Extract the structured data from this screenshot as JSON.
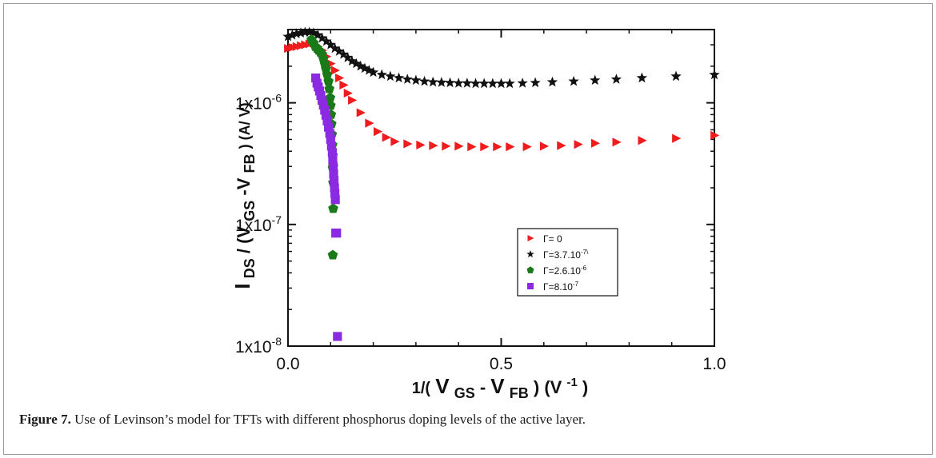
{
  "caption": {
    "label": "Figure 7.",
    "text": "Use of Levinson’s model for TFTs with different phosphorus doping levels of the active layer."
  },
  "chart_data": {
    "type": "scatter",
    "title": "",
    "xlabel": {
      "prefix": "1/(",
      "v1": "V",
      "sub1": "GS",
      "sep": "- ",
      "v2": "V",
      "sub2": "FB",
      "suffix": " ) (V",
      "unit_sup": "-1",
      "close": " )"
    },
    "ylabel": {
      "i": "I",
      "i_sub": "DS",
      "mid": " / (V",
      "sub1": "GS",
      "dash": "-V",
      "sub2": "FB",
      "unit": ") (A/ V)"
    },
    "xlim": [
      0.0,
      1.0
    ],
    "ylim": [
      1e-08,
      4e-06
    ],
    "yscale": "log",
    "x_ticks": [
      0.0,
      0.5,
      1.0
    ],
    "x_tick_labels": [
      "0.0",
      "0.5",
      "1.0"
    ],
    "y_ticks": [
      1e-08,
      1e-07,
      1e-06
    ],
    "y_tick_labels": [
      {
        "mant": "1x10",
        "exp": "-8"
      },
      {
        "mant": "1x10",
        "exp": "-7"
      },
      {
        "mant": "1x10",
        "exp": "-6"
      }
    ],
    "grid": false,
    "legend_position": "center-right",
    "series": [
      {
        "name": "Γ= 0",
        "name_parts": {
          "base": "Γ= 0",
          "sup": ""
        },
        "marker": "triangle-right",
        "color": "#ee1c1c",
        "x": [
          0.0,
          0.01,
          0.02,
          0.03,
          0.04,
          0.05,
          0.06,
          0.07,
          0.08,
          0.09,
          0.1,
          0.11,
          0.12,
          0.13,
          0.14,
          0.15,
          0.17,
          0.19,
          0.21,
          0.23,
          0.25,
          0.28,
          0.31,
          0.34,
          0.37,
          0.4,
          0.43,
          0.46,
          0.49,
          0.52,
          0.56,
          0.6,
          0.64,
          0.68,
          0.72,
          0.77,
          0.83,
          0.91,
          1.0
        ],
        "y": [
          2.8e-06,
          2.85e-06,
          2.9e-06,
          2.95e-06,
          3e-06,
          3.05e-06,
          3.1e-06,
          2.9e-06,
          2.7e-06,
          2.4e-06,
          2.1e-06,
          1.85e-06,
          1.6e-06,
          1.4e-06,
          1.2e-06,
          1.05e-06,
          8.3e-07,
          6.8e-07,
          5.8e-07,
          5.2e-07,
          4.8e-07,
          4.6e-07,
          4.5e-07,
          4.45e-07,
          4.4e-07,
          4.4e-07,
          4.35e-07,
          4.35e-07,
          4.35e-07,
          4.35e-07,
          4.35e-07,
          4.4e-07,
          4.45e-07,
          4.55e-07,
          4.65e-07,
          4.75e-07,
          4.9e-07,
          5.1e-07,
          5.4e-07
        ]
      },
      {
        "name": "Γ=3.7.10",
        "name_parts": {
          "base": "Γ=3.7.10",
          "sup": "-7\\"
        },
        "marker": "star",
        "color": "#111111",
        "x": [
          0.0,
          0.01,
          0.02,
          0.03,
          0.04,
          0.05,
          0.06,
          0.07,
          0.08,
          0.09,
          0.1,
          0.11,
          0.12,
          0.13,
          0.14,
          0.15,
          0.16,
          0.17,
          0.18,
          0.19,
          0.2,
          0.22,
          0.24,
          0.26,
          0.28,
          0.3,
          0.32,
          0.34,
          0.36,
          0.38,
          0.4,
          0.42,
          0.44,
          0.46,
          0.48,
          0.5,
          0.52,
          0.55,
          0.58,
          0.62,
          0.67,
          0.72,
          0.77,
          0.83,
          0.91,
          1.0
        ],
        "y": [
          3.5e-06,
          3.6e-06,
          3.7e-06,
          3.75e-06,
          3.8e-06,
          3.8e-06,
          3.75e-06,
          3.6e-06,
          3.4e-06,
          3.2e-06,
          3e-06,
          2.8e-06,
          2.65e-06,
          2.5e-06,
          2.35e-06,
          2.2e-06,
          2.1e-06,
          2e-06,
          1.92e-06,
          1.85e-06,
          1.78e-06,
          1.7e-06,
          1.65e-06,
          1.6e-06,
          1.56e-06,
          1.53e-06,
          1.5e-06,
          1.48e-06,
          1.47e-06,
          1.46e-06,
          1.45e-06,
          1.45e-06,
          1.44e-06,
          1.44e-06,
          1.44e-06,
          1.44e-06,
          1.44e-06,
          1.45e-06,
          1.46e-06,
          1.48e-06,
          1.5e-06,
          1.53e-06,
          1.56e-06,
          1.6e-06,
          1.65e-06,
          1.7e-06
        ]
      },
      {
        "name": "Γ=2.6.10",
        "name_parts": {
          "base": "Γ=2.6.10",
          "sup": "-6"
        },
        "marker": "pentagon",
        "color": "#1a7a1a",
        "x": [
          0.055,
          0.06,
          0.064,
          0.068,
          0.072,
          0.076,
          0.08,
          0.083,
          0.086,
          0.089,
          0.092,
          0.095,
          0.097,
          0.099,
          0.1,
          0.101,
          0.102,
          0.103,
          0.104,
          0.105,
          0.105,
          0.106,
          0.106,
          0.105,
          0.106
        ],
        "y": [
          3.3e-06,
          3.1e-06,
          2.9e-06,
          2.8e-06,
          2.7e-06,
          2.6e-06,
          2.5e-06,
          2.3e-06,
          2.1e-06,
          1.9e-06,
          1.7e-06,
          1.5e-06,
          1.3e-06,
          1.1e-06,
          9.5e-07,
          8e-07,
          6.7e-07,
          5.5e-07,
          4.5e-07,
          3.7e-07,
          2.9e-07,
          2.2e-07,
          1.35e-07,
          5.6e-08,
          3e-07
        ]
      },
      {
        "name": "Γ=8.10",
        "name_parts": {
          "base": "Γ=8.10",
          "sup": "-7"
        },
        "marker": "square",
        "color": "#8a2be2",
        "x": [
          0.065,
          0.068,
          0.071,
          0.074,
          0.077,
          0.08,
          0.083,
          0.086,
          0.089,
          0.092,
          0.095,
          0.098,
          0.1,
          0.102,
          0.104,
          0.105,
          0.106,
          0.107,
          0.108,
          0.109,
          0.11,
          0.111,
          0.112,
          0.114,
          0.116
        ],
        "y": [
          1.6e-06,
          1.45e-06,
          1.35e-06,
          1.25e-06,
          1.15e-06,
          1.05e-06,
          9.6e-07,
          8.7e-07,
          7.9e-07,
          7.1e-07,
          6.3e-07,
          5.6e-07,
          5e-07,
          4.4e-07,
          3.9e-07,
          3.4e-07,
          3e-07,
          2.6e-07,
          2.3e-07,
          2e-07,
          1.8e-07,
          1.6e-07,
          8.5e-08,
          8.5e-08,
          1.2e-08
        ]
      }
    ]
  }
}
